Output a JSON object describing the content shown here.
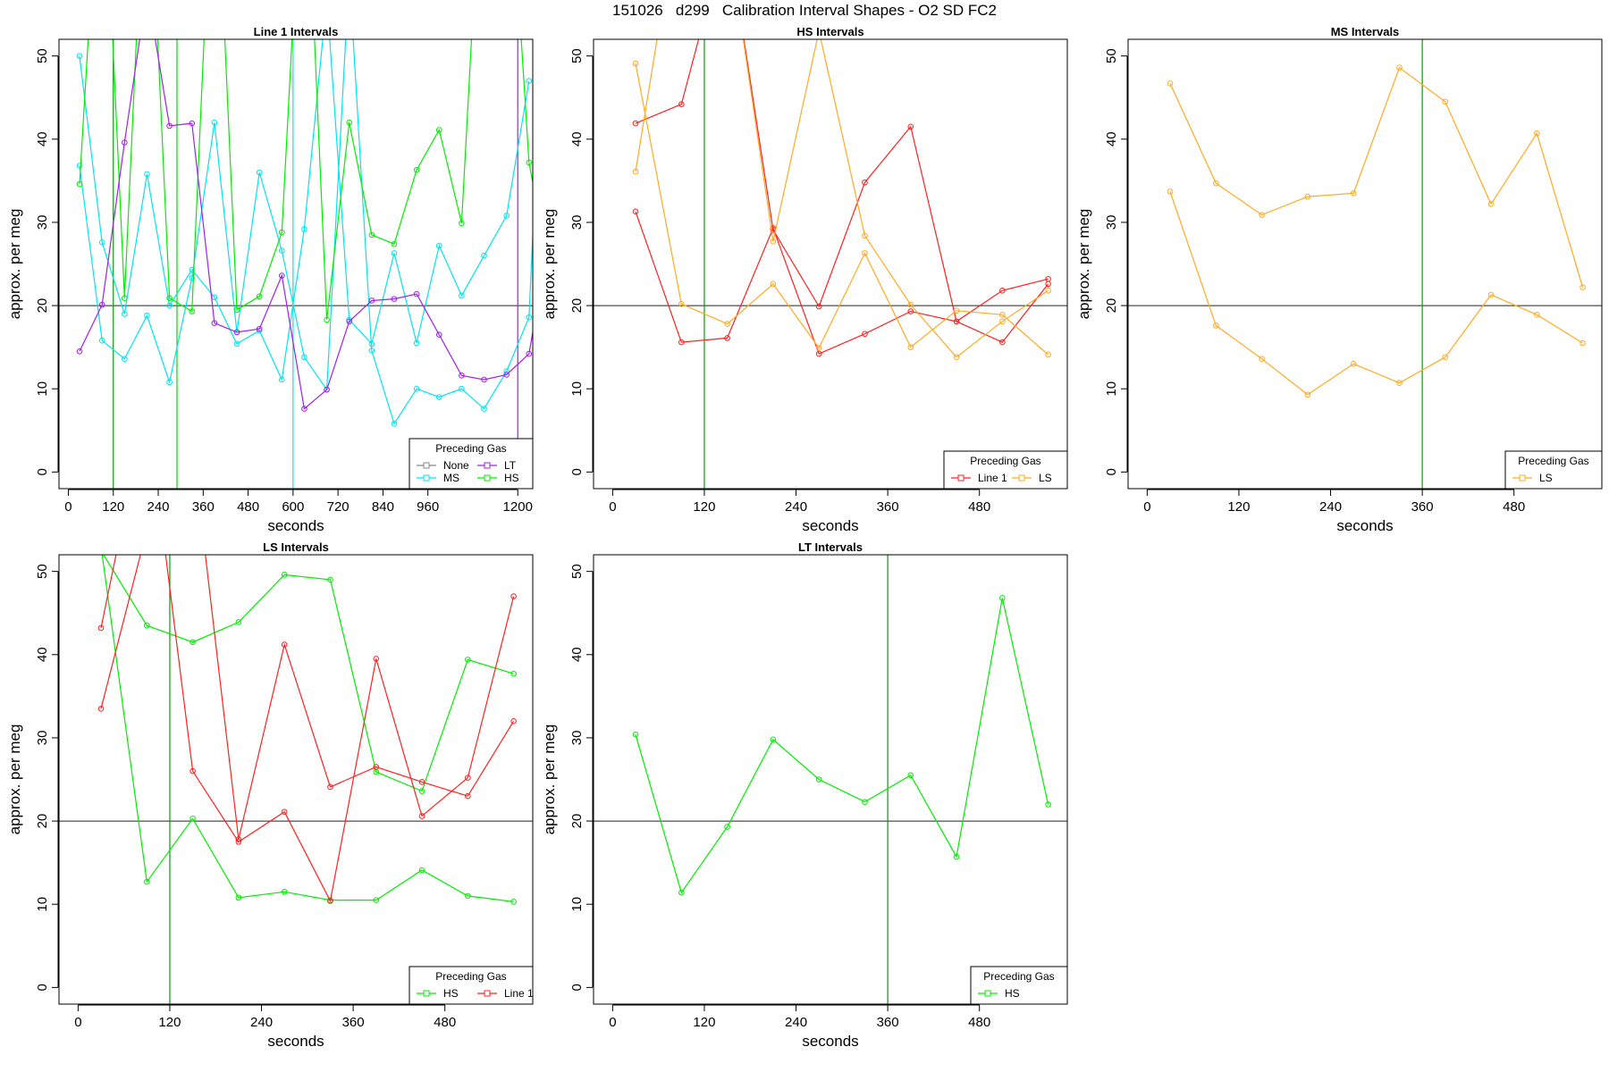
{
  "figure": {
    "title": "151026   d299   Calibration Interval Shapes - O2 SD FC2"
  },
  "chart_data": [
    {
      "type": "line",
      "title": "Line 1 Intervals",
      "xlabel": "seconds",
      "ylabel": "approx. per meg",
      "xlim": [
        -25,
        1240
      ],
      "ylim": [
        -2,
        52
      ],
      "xticks": [
        0,
        120,
        240,
        360,
        480,
        600,
        720,
        840,
        960,
        1200
      ],
      "yticks": [
        0,
        10,
        20,
        30,
        40,
        50
      ],
      "hline": 20,
      "vlines": [
        {
          "x": 120,
          "color": "#00a000"
        },
        {
          "x": 290,
          "color": "#00dd00"
        },
        {
          "x": 600,
          "color": "#00e5ee"
        },
        {
          "x": 1200,
          "color": "#a020f0"
        }
      ],
      "legend": {
        "title": "Preceding Gas",
        "position": "bottom-right",
        "columns": 2,
        "entries": [
          "None",
          "LT",
          "MS",
          "HS"
        ]
      },
      "series": [
        {
          "name": "MS",
          "color": "#00e5ee",
          "x": [
            30,
            90,
            150,
            210,
            270,
            330,
            390,
            450,
            510,
            570,
            630,
            690,
            750,
            810,
            870,
            930,
            990,
            1050,
            1110,
            1170,
            1230
          ],
          "y": [
            50,
            27.6,
            19,
            35.8,
            20,
            24.3,
            21,
            15.4,
            17,
            11.1,
            29.2,
            57,
            18.3,
            15.4,
            26.3,
            15.5,
            27.2,
            21.2,
            26,
            30.8,
            47
          ]
        },
        {
          "name": "MS",
          "color": "#00e5ee",
          "x": [
            30,
            90,
            150,
            210,
            270,
            330,
            390,
            450,
            510,
            570,
            630,
            690,
            750,
            810,
            870,
            930,
            990,
            1050,
            1110,
            1170,
            1230,
            1260
          ],
          "y": [
            36.8,
            15.8,
            13.6,
            18.8,
            10.8,
            23.3,
            42,
            16.8,
            36,
            26.6,
            13.8,
            9.9,
            60,
            14.6,
            5.8,
            10,
            9,
            10,
            7.6,
            12.1,
            18.6,
            48
          ]
        },
        {
          "name": "HS",
          "color": "#00ee00",
          "x": [
            30,
            90,
            150,
            210,
            270,
            330,
            390,
            450,
            510,
            570,
            630,
            690,
            750,
            810,
            870,
            930,
            990,
            1050,
            1110,
            1170,
            1230,
            1260
          ],
          "y": [
            34.6,
            80,
            20.9,
            80,
            20.9,
            19.3,
            80,
            19.5,
            21.1,
            28.8,
            80,
            18.3,
            42,
            28.5,
            27.4,
            36.3,
            41.1,
            29.9,
            80,
            80,
            37.2,
            30
          ]
        },
        {
          "name": "LT",
          "color": "#a020f0",
          "x": [
            30,
            90,
            150,
            210,
            270,
            330,
            390,
            450,
            510,
            570,
            630,
            690,
            750,
            810,
            870,
            930,
            990,
            1050,
            1110,
            1170,
            1230,
            1260
          ],
          "y": [
            14.5,
            20.1,
            39.6,
            58,
            41.6,
            41.9,
            17.9,
            16.8,
            17.2,
            23.6,
            7.6,
            9.9,
            18.1,
            20.6,
            20.8,
            21.4,
            16.5,
            11.6,
            11.1,
            11.7,
            14.2,
            22
          ]
        }
      ]
    },
    {
      "type": "line",
      "title": "HS Intervals",
      "xlabel": "seconds",
      "ylabel": "approx. per meg",
      "xlim": [
        -25,
        595
      ],
      "ylim": [
        -2,
        52
      ],
      "xticks": [
        0,
        120,
        240,
        360,
        480
      ],
      "yticks": [
        0,
        10,
        20,
        30,
        40,
        50
      ],
      "hline": 20,
      "vlines": [
        {
          "x": 120,
          "color": "#00a000"
        }
      ],
      "legend": {
        "title": "Preceding Gas",
        "position": "bottom-right",
        "columns": 2,
        "entries": [
          "Line 1",
          "LS"
        ]
      },
      "series": [
        {
          "name": "Line 1",
          "color": "#ff2020",
          "x": [
            30,
            90,
            150,
            210,
            270,
            330,
            390,
            450,
            510,
            570
          ],
          "y": [
            31.3,
            15.6,
            16.1,
            29.3,
            14.2,
            16.6,
            19.3,
            18.1,
            21.8,
            23.2
          ]
        },
        {
          "name": "Line 1",
          "color": "#ff2020",
          "x": [
            30,
            90,
            150,
            210,
            270,
            330,
            390,
            450,
            510,
            570
          ],
          "y": [
            41.9,
            44.2,
            65,
            29.1,
            19.9,
            34.8,
            41.5,
            18.1,
            15.6,
            22.6
          ]
        },
        {
          "name": "LS",
          "color": "#ffaa22",
          "x": [
            30,
            90,
            150,
            210,
            270,
            330,
            390,
            450,
            510,
            570
          ],
          "y": [
            49.1,
            20.2,
            17.8,
            22.6,
            14.9,
            26.3,
            15,
            19.4,
            18.9,
            14.1
          ]
        },
        {
          "name": "LS",
          "color": "#ffaa22",
          "x": [
            30,
            90,
            150,
            210,
            270,
            330,
            390,
            450,
            510,
            570
          ],
          "y": [
            36.1,
            70,
            65,
            27.7,
            53,
            28.4,
            20.1,
            13.8,
            18.1,
            21.8
          ]
        }
      ]
    },
    {
      "type": "line",
      "title": "MS Intervals",
      "xlabel": "seconds",
      "ylabel": "approx. per meg",
      "xlim": [
        -25,
        595
      ],
      "ylim": [
        -2,
        52
      ],
      "xticks": [
        0,
        120,
        240,
        360,
        480
      ],
      "yticks": [
        0,
        10,
        20,
        30,
        40,
        50
      ],
      "hline": 20,
      "vlines": [
        {
          "x": 360,
          "color": "#00a000"
        }
      ],
      "legend": {
        "title": "Preceding Gas",
        "position": "bottom-right",
        "columns": 1,
        "entries": [
          "LS"
        ]
      },
      "series": [
        {
          "name": "LS",
          "color": "#ffaa22",
          "x": [
            30,
            90,
            150,
            210,
            270,
            330,
            390,
            450,
            510,
            570
          ],
          "y": [
            46.7,
            34.7,
            30.9,
            33.1,
            33.5,
            48.6,
            44.5,
            32.2,
            40.7,
            22.2
          ]
        },
        {
          "name": "LS",
          "color": "#ffaa22",
          "x": [
            30,
            90,
            150,
            210,
            270,
            330,
            390,
            450,
            510,
            570
          ],
          "y": [
            33.7,
            17.6,
            13.6,
            9.3,
            13,
            10.7,
            13.8,
            21.3,
            18.9,
            15.5
          ]
        }
      ]
    },
    {
      "type": "line",
      "title": "LS Intervals",
      "xlabel": "seconds",
      "ylabel": "approx. per meg",
      "xlim": [
        -25,
        595
      ],
      "ylim": [
        -2,
        52
      ],
      "xticks": [
        0,
        120,
        240,
        360,
        480
      ],
      "yticks": [
        0,
        10,
        20,
        30,
        40,
        50
      ],
      "hline": 20,
      "vlines": [
        {
          "x": 120,
          "color": "#00a000"
        }
      ],
      "legend": {
        "title": "Preceding Gas",
        "position": "bottom-right",
        "columns": 2,
        "entries": [
          "HS",
          "Line 1"
        ]
      },
      "series": [
        {
          "name": "HS",
          "color": "#00ee00",
          "x": [
            30,
            90,
            150,
            210,
            270,
            330,
            390,
            450,
            510,
            570
          ],
          "y": [
            52.5,
            43.5,
            41.5,
            43.9,
            49.6,
            49,
            25.9,
            23.6,
            39.4,
            37.7
          ]
        },
        {
          "name": "HS",
          "color": "#00ee00",
          "x": [
            30,
            90,
            150,
            210,
            270,
            330,
            390,
            450,
            510,
            570
          ],
          "y": [
            53,
            12.7,
            20.3,
            10.8,
            11.5,
            10.5,
            10.5,
            14.1,
            11,
            10.3
          ]
        },
        {
          "name": "Line 1",
          "color": "#ff2020",
          "x": [
            30,
            90,
            150,
            210,
            270,
            330,
            390,
            450,
            510,
            570
          ],
          "y": [
            43.2,
            70,
            26,
            17.5,
            21.1,
            10.4,
            39.5,
            20.6,
            25.2,
            47
          ]
        },
        {
          "name": "Line 1",
          "color": "#ff2020",
          "x": [
            30,
            90,
            150,
            210,
            270,
            330,
            390,
            450,
            510,
            570
          ],
          "y": [
            33.5,
            55,
            65,
            17.8,
            41.2,
            24.1,
            26.5,
            24.7,
            23,
            32
          ]
        }
      ]
    },
    {
      "type": "line",
      "title": "LT Intervals",
      "xlabel": "seconds",
      "ylabel": "approx. per meg",
      "xlim": [
        -25,
        595
      ],
      "ylim": [
        -2,
        52
      ],
      "xticks": [
        0,
        120,
        240,
        360,
        480
      ],
      "yticks": [
        0,
        10,
        20,
        30,
        40,
        50
      ],
      "hline": 20,
      "vlines": [
        {
          "x": 360,
          "color": "#00a000"
        }
      ],
      "legend": {
        "title": "Preceding Gas",
        "position": "bottom-right",
        "columns": 1,
        "entries": [
          "HS"
        ]
      },
      "series": [
        {
          "name": "HS",
          "color": "#00ee00",
          "x": [
            30,
            90,
            150,
            210,
            270,
            330,
            390,
            450,
            510,
            570
          ],
          "y": [
            30.4,
            11.4,
            19.3,
            29.8,
            25,
            22.3,
            25.5,
            15.7,
            46.8,
            22
          ]
        }
      ]
    }
  ]
}
